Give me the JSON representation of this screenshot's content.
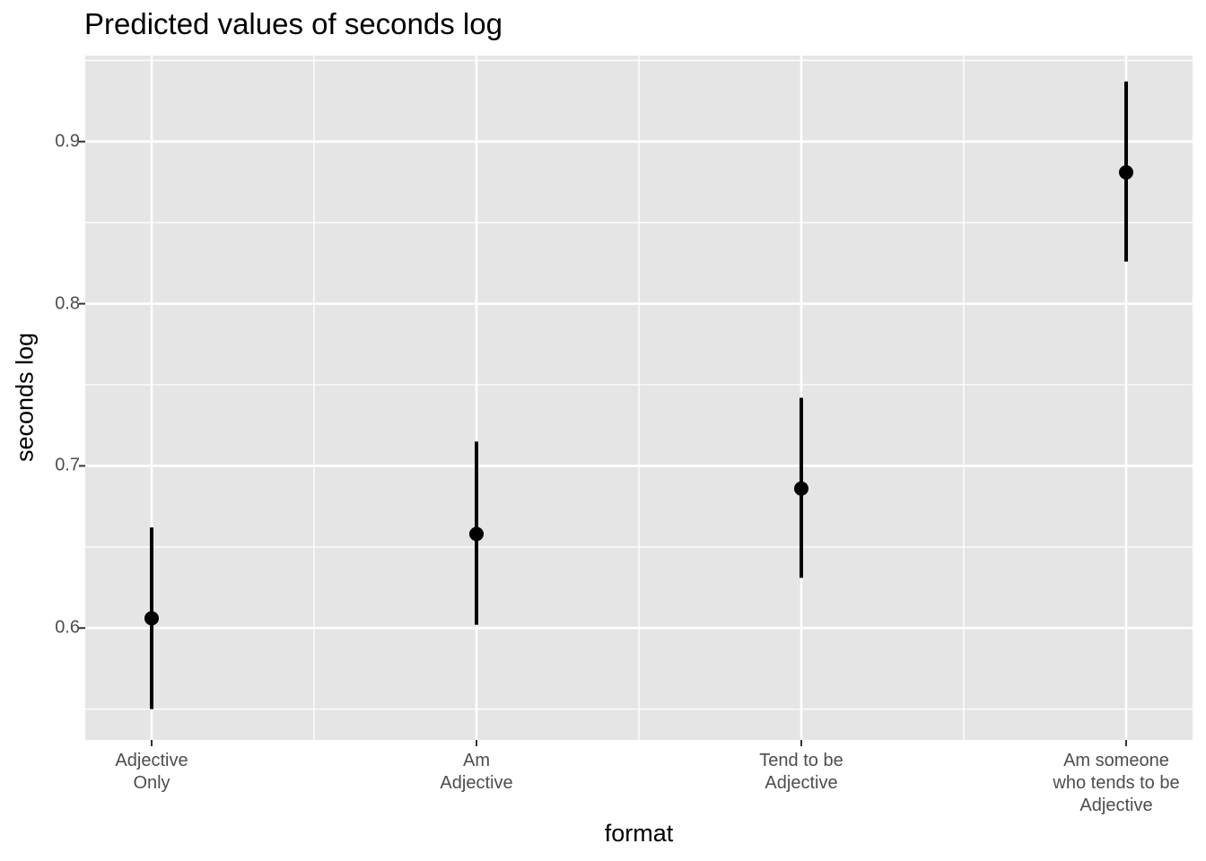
{
  "chart_data": {
    "type": "scatter",
    "title": "Predicted values of seconds log",
    "xlabel": "format",
    "ylabel": "seconds log",
    "categories": [
      [
        "Adjective",
        "Only"
      ],
      [
        "Am",
        "Adjective"
      ],
      [
        "Tend to be",
        "Adjective"
      ],
      [
        "Am someone",
        "who tends to be",
        "Adjective"
      ]
    ],
    "series": [
      {
        "values": [
          0.606,
          0.658,
          0.686,
          0.881
        ],
        "ci_low": [
          0.55,
          0.602,
          0.631,
          0.826
        ],
        "ci_high": [
          0.662,
          0.715,
          0.742,
          0.937
        ]
      }
    ],
    "ylim": [
      0.531,
      0.953
    ],
    "yticks": [
      0.6,
      0.7,
      0.8,
      0.9
    ],
    "ytick_labels": [
      "0.6",
      "0.7",
      "0.8",
      "0.9"
    ],
    "grid": true,
    "colors": {
      "panel": "#e5e5e5",
      "grid": "#ffffff",
      "point": "#000000"
    }
  }
}
